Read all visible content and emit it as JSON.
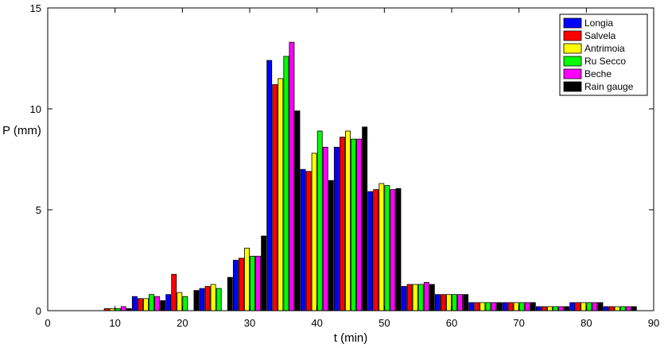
{
  "chart_data": {
    "type": "bar",
    "xlabel": "t (min)",
    "ylabel": "P (mm)",
    "xlim": [
      0,
      90
    ],
    "ylim": [
      0,
      15
    ],
    "xticks": [
      0,
      10,
      20,
      30,
      40,
      50,
      60,
      70,
      80,
      90
    ],
    "yticks": [
      0,
      5,
      10,
      15
    ],
    "x": [
      10,
      15,
      20,
      25,
      30,
      35,
      40,
      45,
      50,
      55,
      60,
      65,
      70,
      75,
      80,
      85
    ],
    "legend_position": "top-right",
    "grid": false,
    "series": [
      {
        "name": "Longia",
        "color": "#0000ff",
        "values": [
          0.0,
          0.7,
          0.8,
          1.1,
          2.5,
          12.4,
          7.0,
          8.1,
          5.9,
          1.2,
          0.8,
          0.4,
          0.4,
          0.2,
          0.4,
          0.2
        ]
      },
      {
        "name": "Salvela",
        "color": "#ff0000",
        "values": [
          0.1,
          0.6,
          1.8,
          1.2,
          2.6,
          11.2,
          6.9,
          8.6,
          6.0,
          1.3,
          0.8,
          0.4,
          0.4,
          0.2,
          0.4,
          0.2
        ]
      },
      {
        "name": "Antrimoia",
        "color": "#ffff00",
        "values": [
          0.1,
          0.6,
          0.9,
          1.3,
          3.1,
          11.5,
          7.8,
          8.9,
          6.3,
          1.3,
          0.8,
          0.4,
          0.4,
          0.2,
          0.4,
          0.2
        ]
      },
      {
        "name": "Ru Secco",
        "color": "#00ff00",
        "values": [
          0.1,
          0.8,
          0.7,
          1.1,
          2.7,
          12.6,
          8.9,
          8.5,
          6.2,
          1.3,
          0.8,
          0.4,
          0.4,
          0.2,
          0.4,
          0.2
        ]
      },
      {
        "name": "Beche",
        "color": "#ff00ff",
        "values": [
          0.2,
          0.7,
          0.0,
          0.0,
          2.7,
          13.3,
          8.1,
          8.5,
          6.0,
          1.4,
          0.8,
          0.4,
          0.4,
          0.2,
          0.4,
          0.2
        ]
      },
      {
        "name": "Rain gauge",
        "color": "#000000",
        "values": [
          0.1,
          0.5,
          1.0,
          1.65,
          3.7,
          9.9,
          6.45,
          9.1,
          6.05,
          1.3,
          0.8,
          0.4,
          0.4,
          0.2,
          0.4,
          0.2
        ]
      }
    ]
  }
}
